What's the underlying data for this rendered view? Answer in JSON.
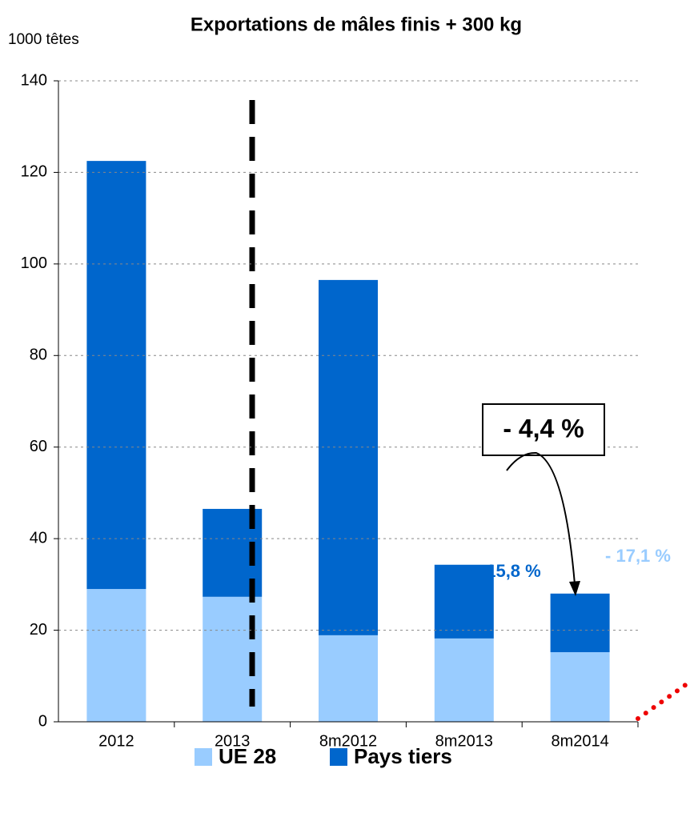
{
  "chart_data": {
    "type": "stacked_bar",
    "title": "Exportations de mâles finis + 300 kg",
    "y_label": "1000 têtes",
    "categories": [
      "2012",
      "2013",
      "8m2012",
      "8m2013",
      "8m2014"
    ],
    "series": [
      {
        "name": "UE 28",
        "color": "#99ccff",
        "values": [
          29.0,
          27.3,
          18.9,
          18.2,
          15.2
        ]
      },
      {
        "name": "Pays tiers",
        "color": "#0066cc",
        "values": [
          93.5,
          19.2,
          77.6,
          16.1,
          12.8
        ]
      }
    ],
    "ylim": [
      0,
      140
    ],
    "yticks": [
      0,
      20,
      40,
      60,
      80,
      100,
      120,
      140
    ],
    "grid": true,
    "annotations": [
      "+ 15,8 %",
      "-  17,1 %",
      "- 4,4 %"
    ]
  }
}
